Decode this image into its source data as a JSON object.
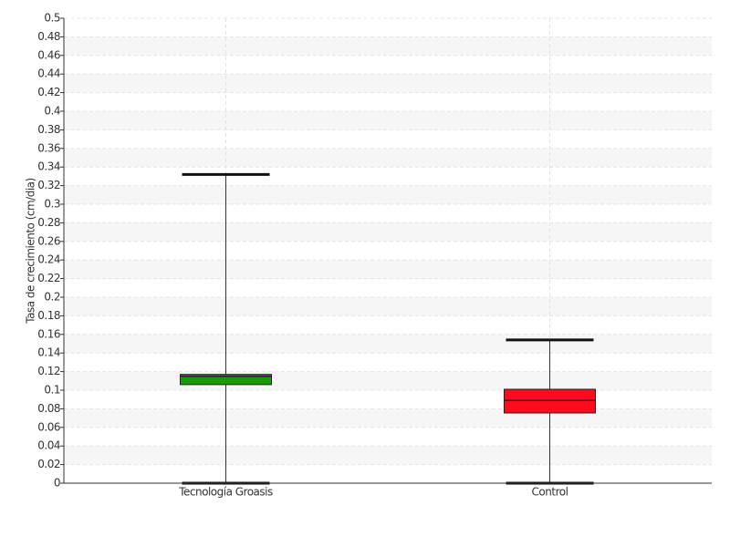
{
  "chart_data": {
    "type": "box",
    "y_label": "Tasa de crecimiento (cm/dia)",
    "categories": [
      "Tecnología Groasis",
      "Control"
    ],
    "colors": [
      "#1a9a0a",
      "#ff0a1e"
    ],
    "min": [
      0,
      0
    ],
    "q1": [
      0.106,
      0.0755
    ],
    "median": [
      0.115,
      0.089
    ],
    "q3": [
      0.117,
      0.101
    ],
    "max": [
      0.332,
      0.154
    ],
    "ylim": [
      0,
      0.5
    ],
    "yticks": [
      0,
      0.02,
      0.04,
      0.06,
      0.08,
      0.1,
      0.12,
      0.14,
      0.16,
      0.18,
      0.2,
      0.22,
      0.24,
      0.26,
      0.28,
      0.3,
      0.32,
      0.34,
      0.36,
      0.38,
      0.4,
      0.42,
      0.44,
      0.46,
      0.48,
      0.5
    ],
    "grid": true
  }
}
